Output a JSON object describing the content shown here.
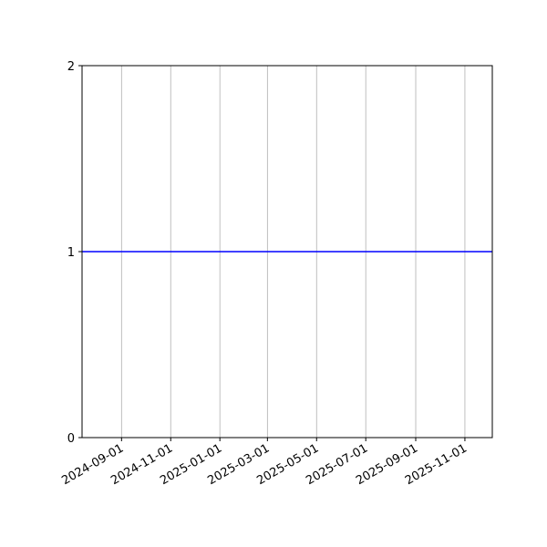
{
  "chart_data": {
    "type": "line",
    "title": "",
    "xlabel": "",
    "ylabel": "",
    "xlim": [
      "2024-07-14",
      "2025-12-05"
    ],
    "ylim": [
      0,
      2
    ],
    "x_ticks": [
      "2024-09-01",
      "2024-11-01",
      "2025-01-01",
      "2025-03-01",
      "2025-05-01",
      "2025-07-01",
      "2025-09-01",
      "2025-11-01"
    ],
    "y_ticks": [
      0,
      1,
      2
    ],
    "grid": "x-axis vertical gridlines only",
    "series": [
      {
        "x": [
          "2024-07-14",
          "2025-12-05"
        ],
        "y": [
          1,
          1
        ],
        "color": "#0000ff"
      }
    ]
  }
}
